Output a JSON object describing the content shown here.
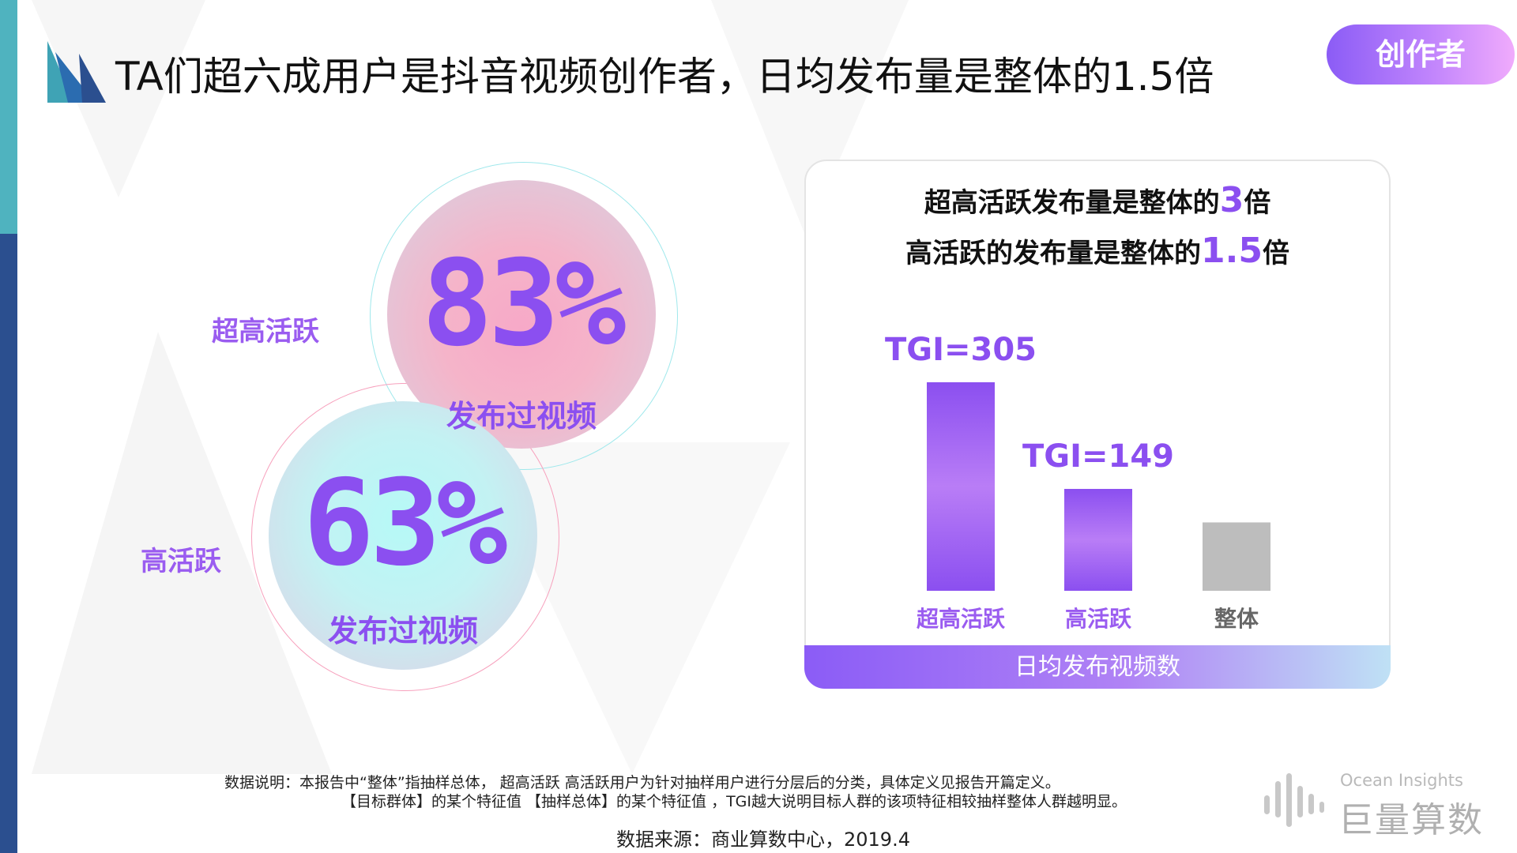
{
  "title": "TA们超六成用户是抖音视频创作者，日均发布量是整体的1.5倍",
  "tag": "创作者",
  "circles": {
    "top": {
      "side_label": "超高活跃",
      "value": "83%",
      "caption": "发布过视频"
    },
    "bottom": {
      "side_label": "高活跃",
      "value": "63%",
      "caption": "发布过视频"
    }
  },
  "panel": {
    "headline_1": {
      "pre": "超高活跃发布量是整体的",
      "num": "3",
      "post": "倍"
    },
    "headline_2": {
      "pre": "高活跃的发布量是整体的",
      "num": "1.5",
      "post": "倍"
    },
    "footer_label": "日均发布视频数"
  },
  "chart_data": {
    "type": "bar",
    "categories": [
      "超高活跃",
      "高活跃",
      "整体"
    ],
    "values": [
      305,
      149,
      100
    ],
    "data_labels": [
      "TGI=305",
      "TGI=149",
      ""
    ],
    "xlabel": "日均发布视频数",
    "ylabel": "",
    "colors": [
      "#8b4ff0",
      "#8b4ff0",
      "#bdbdbd"
    ],
    "ylim": [
      0,
      305
    ]
  },
  "notes": {
    "line1": "数据说明：本报告中“整体”指抽样总体， 超高活跃 高活跃用户为针对抽样用户进行分层后的分类，具体定义见报告开篇定义。",
    "line2": "【目标群体】的某个特征值 【抽样总体】的某个特征值      ，TGI越大说明目标人群的该项特征相较抽样整体人群越明显。",
    "source": "数据来源：商业算数中心，2019.4"
  },
  "brand": {
    "en": "Ocean Insights",
    "cn": "巨量算数"
  },
  "colors": {
    "accent": "#8b4ff0",
    "teal": "#4fb3bf",
    "navy": "#2b4f8f"
  }
}
